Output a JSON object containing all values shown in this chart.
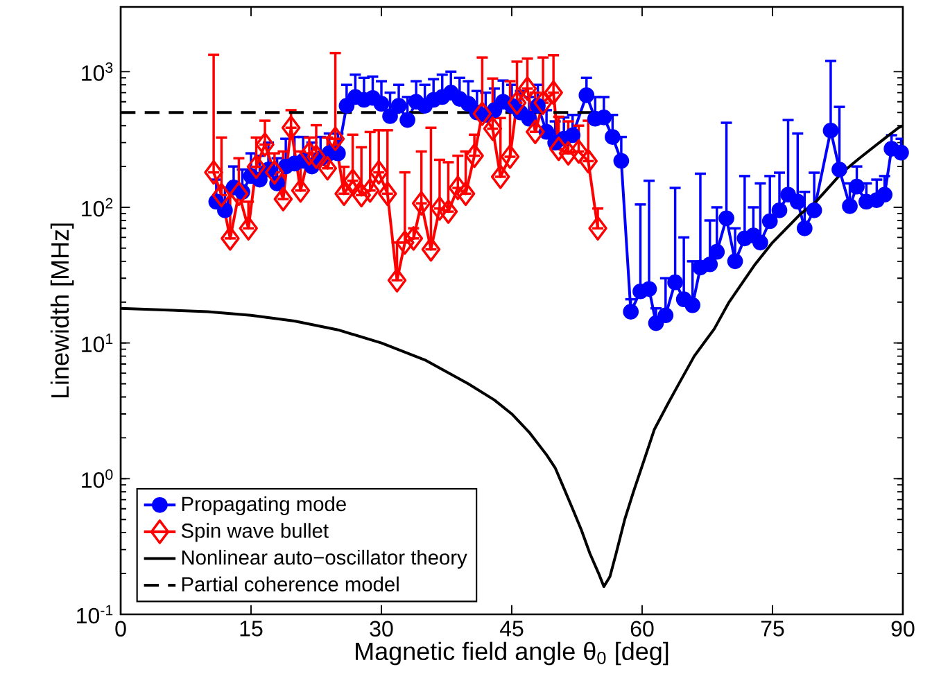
{
  "chart_data": {
    "type": "line",
    "xlabel": "Magnetic field angle θ$_{0}$ [deg]",
    "ylabel": "Linewidth [MHz]",
    "xlim": [
      0,
      90
    ],
    "ylim": [
      0.1,
      3000
    ],
    "log": "y",
    "legend": "bottom left",
    "xticks": [
      0,
      15,
      30,
      45,
      60,
      75,
      90
    ],
    "yticks": [
      {
        "value": 0.1,
        "label": "10$^{-1}$"
      },
      {
        "value": 1,
        "label": "10$^{0}$"
      },
      {
        "value": 10,
        "label": "10$^{1}$"
      },
      {
        "value": 100,
        "label": "10$^{2}$"
      },
      {
        "value": 1000,
        "label": "10$^{3}$"
      }
    ],
    "series": [
      {
        "name": "Propagating mode",
        "color": "#0000ff",
        "marker": "circle",
        "line_style": "solid",
        "x": [
          11,
          12,
          13,
          14,
          15,
          16,
          17,
          18,
          19,
          20,
          21,
          22,
          23,
          24,
          25,
          26,
          27,
          28,
          29,
          30,
          31,
          32,
          33,
          34,
          35,
          36,
          37,
          38,
          39,
          40,
          41,
          42,
          43,
          44,
          45,
          46,
          47,
          48,
          49,
          50,
          51,
          52,
          53.6,
          54.6,
          55.6,
          56.6,
          57.6,
          58.7,
          59.8,
          60.8,
          61.6,
          62.7,
          63.8,
          64.8,
          65.8,
          66.7,
          67.8,
          68.6,
          69.7,
          70.7,
          71.8,
          72.8,
          73.6,
          74.7,
          75.8,
          76.8,
          77.9,
          78.7,
          79.8,
          81.7,
          82.7,
          83.9,
          84.7,
          85.8,
          87,
          87.9,
          88.7,
          89.8
        ],
        "values": [
          110,
          95,
          140,
          130,
          170,
          160,
          190,
          150,
          200,
          210,
          220,
          200,
          230,
          250,
          250,
          560,
          650,
          620,
          640,
          580,
          470,
          560,
          440,
          600,
          560,
          620,
          650,
          700,
          630,
          580,
          500,
          480,
          520,
          600,
          560,
          500,
          450,
          560,
          360,
          300,
          320,
          340,
          670,
          450,
          460,
          330,
          220,
          17,
          24,
          25,
          14,
          16,
          28,
          21,
          19,
          36,
          38,
          47,
          83,
          40,
          59,
          62,
          55,
          79,
          95,
          124,
          110,
          70,
          95,
          368,
          190,
          102,
          142,
          110,
          113,
          124,
          270,
          253
        ],
        "errors": [
          [
            110,
            160
          ],
          [
            95,
            140
          ],
          [
            140,
            200
          ],
          [
            130,
            190
          ],
          [
            170,
            250
          ],
          [
            160,
            240
          ],
          [
            190,
            300
          ],
          [
            150,
            230
          ],
          [
            200,
            320
          ],
          [
            210,
            330
          ],
          [
            220,
            330
          ],
          [
            200,
            300
          ],
          [
            230,
            330
          ],
          [
            250,
            350
          ],
          [
            250,
            350
          ],
          [
            560,
            800
          ],
          [
            650,
            950
          ],
          [
            620,
            900
          ],
          [
            640,
            920
          ],
          [
            580,
            850
          ],
          [
            470,
            700
          ],
          [
            560,
            800
          ],
          [
            440,
            650
          ],
          [
            600,
            850
          ],
          [
            560,
            800
          ],
          [
            620,
            880
          ],
          [
            650,
            950
          ],
          [
            700,
            1000
          ],
          [
            630,
            900
          ],
          [
            580,
            850
          ],
          [
            500,
            720
          ],
          [
            480,
            700
          ],
          [
            520,
            750
          ],
          [
            600,
            860
          ],
          [
            560,
            800
          ],
          [
            500,
            720
          ],
          [
            450,
            650
          ],
          [
            560,
            800
          ],
          [
            360,
            520
          ],
          [
            300,
            430
          ],
          [
            320,
            460
          ],
          [
            340,
            480
          ],
          [
            670,
            900
          ],
          [
            450,
            650
          ],
          [
            460,
            650
          ],
          [
            330,
            480
          ],
          [
            220,
            330
          ],
          [
            17,
            21
          ],
          [
            24,
            105
          ],
          [
            25,
            157
          ],
          [
            14,
            18
          ],
          [
            16,
            30
          ],
          [
            28,
            139
          ],
          [
            21,
            60
          ],
          [
            19,
            40
          ],
          [
            36,
            177
          ],
          [
            38,
            80
          ],
          [
            47,
            100
          ],
          [
            83,
            420
          ],
          [
            40,
            70
          ],
          [
            59,
            170
          ],
          [
            62,
            100
          ],
          [
            55,
            150
          ],
          [
            79,
            170
          ],
          [
            95,
            180
          ],
          [
            124,
            440
          ],
          [
            110,
            350
          ],
          [
            70,
            130
          ],
          [
            95,
            180
          ],
          [
            368,
            1200
          ],
          [
            190,
            550
          ],
          [
            102,
            150
          ],
          [
            142,
            200
          ],
          [
            110,
            150
          ],
          [
            113,
            160
          ],
          [
            124,
            170
          ],
          [
            270,
            340
          ],
          [
            253,
            320
          ]
        ]
      },
      {
        "name": "Spin wave bullet",
        "color": "#ff0000",
        "marker": "diamond",
        "line_style": "solid",
        "x": [
          10.7,
          11.6,
          12.6,
          13.6,
          14.7,
          15.6,
          16.6,
          17.7,
          18.7,
          19.6,
          20.7,
          21.7,
          22.5,
          23.8,
          24.7,
          25.7,
          26.7,
          27.7,
          28.7,
          29.7,
          30.7,
          31.8,
          32.7,
          33.7,
          34.6,
          35.7,
          36.7,
          37.7,
          38.8,
          39.7,
          40.7,
          41.6,
          42.8,
          43.7,
          44.8,
          45.6,
          46.8,
          47.7,
          48.6,
          49.8,
          50.4,
          51.5,
          52.7,
          53.8,
          54.9
        ],
        "values": [
          181,
          123,
          59,
          126,
          70,
          199,
          290,
          181,
          115,
          386,
          133,
          250,
          236,
          194,
          320,
          126,
          157,
          123,
          133,
          181,
          126,
          29,
          55,
          59,
          107,
          49,
          98,
          93,
          139,
          126,
          240,
          490,
          380,
          168,
          236,
          590,
          750,
          360,
          590,
          700,
          270,
          250,
          258,
          219,
          70
        ],
        "errors": [
          [
            181,
            1330
          ],
          [
            123,
            327
          ],
          [
            59,
            133
          ],
          [
            126,
            230
          ],
          [
            70,
            110
          ],
          [
            199,
            327
          ],
          [
            290,
            435
          ],
          [
            181,
            250
          ],
          [
            115,
            258
          ],
          [
            386,
            520
          ],
          [
            133,
            258
          ],
          [
            250,
            327
          ],
          [
            236,
            403
          ],
          [
            194,
            327
          ],
          [
            320,
            1370
          ],
          [
            126,
            199
          ],
          [
            157,
            343
          ],
          [
            123,
            277
          ],
          [
            133,
            359
          ],
          [
            181,
            370
          ],
          [
            126,
            370
          ],
          [
            29,
            55
          ],
          [
            55,
            181
          ],
          [
            59,
            70
          ],
          [
            107,
            258
          ],
          [
            49,
            386
          ],
          [
            98,
            224
          ],
          [
            93,
            215
          ],
          [
            139,
            240
          ],
          [
            126,
            258
          ],
          [
            240,
            343
          ],
          [
            490,
            1270
          ],
          [
            380,
            890
          ],
          [
            168,
            455
          ],
          [
            236,
            850
          ],
          [
            590,
            1185
          ],
          [
            750,
            1250
          ],
          [
            360,
            700
          ],
          [
            590,
            1270
          ],
          [
            700,
            1320
          ],
          [
            270,
            465
          ],
          [
            250,
            430
          ],
          [
            258,
            400
          ],
          [
            219,
            435
          ],
          [
            70,
            98
          ]
        ]
      },
      {
        "name": "Nonlinear auto−oscillator theory",
        "color": "#000000",
        "marker": "none",
        "line_style": "solid",
        "x": [
          0,
          5,
          10,
          15,
          20,
          25,
          30,
          35,
          40,
          43,
          45,
          47,
          49,
          50,
          51,
          52,
          53,
          54,
          55,
          55.6,
          56.3,
          57,
          58,
          59,
          60,
          61.4,
          63,
          64.3,
          66,
          68.3,
          70,
          73,
          75,
          78.2,
          80,
          83,
          85,
          87,
          89.5,
          90
        ],
        "values": [
          18,
          17.5,
          17,
          16,
          14.5,
          12.5,
          10,
          7.5,
          5,
          3.8,
          3,
          2.2,
          1.5,
          1.2,
          0.85,
          0.6,
          0.42,
          0.28,
          0.2,
          0.16,
          0.19,
          0.28,
          0.5,
          0.8,
          1.24,
          2.3,
          3.6,
          5.1,
          8,
          12.7,
          20,
          38,
          55,
          89,
          110,
          180,
          230,
          290,
          386,
          400
        ]
      },
      {
        "name": "Partial coherence model",
        "color": "#000000",
        "marker": "none",
        "line_style": "dashed",
        "x": [
          0,
          54.5
        ],
        "values": [
          500,
          500
        ]
      }
    ]
  }
}
